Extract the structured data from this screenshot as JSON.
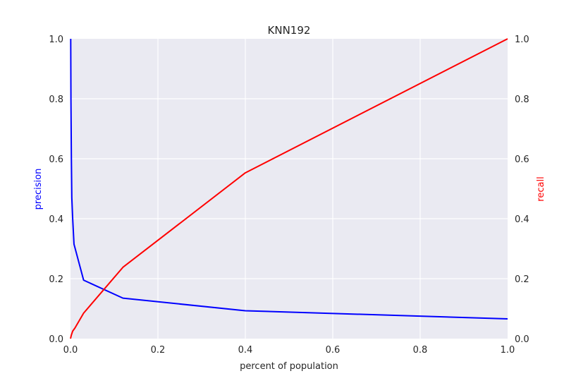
{
  "chart_data": {
    "type": "line",
    "title": "KNN192",
    "xlabel": "percent of population",
    "ylabel_left": "precision",
    "ylabel_right": "recall",
    "xlim": [
      0,
      1
    ],
    "ylim_left": [
      0,
      1
    ],
    "ylim_right": [
      0,
      1
    ],
    "xticks": [
      "0.0",
      "0.2",
      "0.4",
      "0.6",
      "0.8",
      "1.0"
    ],
    "yticks_left": [
      "0.0",
      "0.2",
      "0.4",
      "0.6",
      "0.8",
      "1.0"
    ],
    "yticks_right": [
      "0.0",
      "0.2",
      "0.4",
      "0.6",
      "0.8",
      "1.0"
    ],
    "grid": true,
    "background_color": "#eaeaf2",
    "series": [
      {
        "name": "precision",
        "axis": "left",
        "color": "#0000ff",
        "points": [
          [
            0.0005,
            1.0
          ],
          [
            0.001,
            0.8
          ],
          [
            0.002,
            0.6
          ],
          [
            0.003,
            0.47
          ],
          [
            0.005,
            0.4
          ],
          [
            0.008,
            0.315
          ],
          [
            0.03,
            0.195
          ],
          [
            0.12,
            0.135
          ],
          [
            0.4,
            0.093
          ],
          [
            1.0,
            0.066
          ]
        ]
      },
      {
        "name": "recall",
        "axis": "right",
        "color": "#ff0000",
        "points": [
          [
            0.0,
            0.0
          ],
          [
            0.002,
            0.012
          ],
          [
            0.005,
            0.025
          ],
          [
            0.01,
            0.035
          ],
          [
            0.03,
            0.085
          ],
          [
            0.12,
            0.238
          ],
          [
            0.4,
            0.553
          ],
          [
            1.0,
            1.0
          ]
        ]
      }
    ]
  }
}
